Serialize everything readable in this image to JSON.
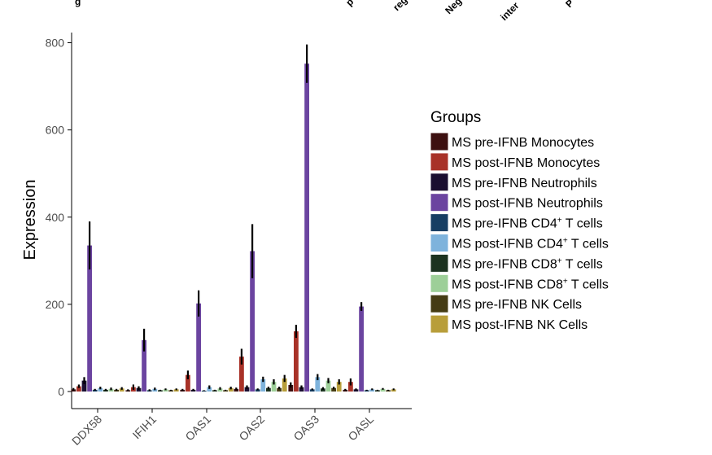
{
  "top_fragments": [
    "g",
    "p",
    "reg",
    "Neg",
    "inter",
    "P"
  ],
  "chart_data": {
    "type": "bar",
    "ylabel": "Expression",
    "ylim": [
      0,
      800
    ],
    "yticks": [
      0,
      200,
      400,
      600,
      800
    ],
    "categories": [
      "DDX58",
      "IFIH1",
      "OAS1",
      "OAS2",
      "OAS3",
      "OASL"
    ],
    "legend": {
      "title": "Groups",
      "position": "right"
    },
    "grid": false,
    "series": [
      {
        "name": "MS pre-IFNB Monocytes",
        "label_main": "MS pre-IFNB Monocytes",
        "label_sup": "",
        "label_tail": "",
        "color": "#3d1010",
        "values": [
          5,
          3,
          4,
          6,
          15,
          4
        ],
        "errors": [
          3,
          2,
          2,
          3,
          6,
          2
        ]
      },
      {
        "name": "MS post-IFNB Monocytes",
        "label_main": "MS post-IFNB Monocytes",
        "label_sup": "",
        "label_tail": "",
        "color": "#a83228",
        "values": [
          12,
          10,
          38,
          80,
          138,
          22
        ],
        "errors": [
          4,
          6,
          10,
          18,
          15,
          8
        ]
      },
      {
        "name": "MS pre-IFNB Neutrophils",
        "label_main": "MS pre-IFNB Neutrophils",
        "label_sup": "",
        "label_tail": "",
        "color": "#1a0e30",
        "values": [
          25,
          8,
          4,
          10,
          10,
          5
        ],
        "errors": [
          8,
          4,
          2,
          4,
          4,
          2
        ]
      },
      {
        "name": "MS post-IFNB Neutrophils",
        "label_main": "MS post-IFNB Neutrophils",
        "label_sup": "",
        "label_tail": "",
        "color": "#6b44a0",
        "values": [
          335,
          118,
          202,
          322,
          752,
          195
        ],
        "errors": [
          55,
          26,
          30,
          62,
          44,
          10
        ]
      },
      {
        "name": "MS pre-IFNB CD4+ T cells",
        "label_main": "MS pre-IFNB CD4",
        "label_sup": "+",
        "label_tail": " T cells",
        "color": "#173e63",
        "values": [
          4,
          3,
          2,
          5,
          5,
          3
        ],
        "errors": [
          2,
          2,
          1,
          2,
          2,
          1
        ]
      },
      {
        "name": "MS post-IFNB CD4+ T cells",
        "label_main": "MS post-IFNB CD4",
        "label_sup": "+",
        "label_tail": " T cells",
        "color": "#7eb3dc",
        "values": [
          8,
          6,
          10,
          28,
          33,
          5
        ],
        "errors": [
          3,
          3,
          4,
          6,
          7,
          2
        ]
      },
      {
        "name": "MS pre-IFNB CD8+ T cells",
        "label_main": "MS pre-IFNB CD8",
        "label_sup": "+",
        "label_tail": " T cells",
        "color": "#1c3320",
        "values": [
          4,
          3,
          3,
          8,
          7,
          3
        ],
        "errors": [
          2,
          1,
          1,
          3,
          3,
          1
        ]
      },
      {
        "name": "MS post-IFNB CD8+ T cells",
        "label_main": "MS post-IFNB CD8",
        "label_sup": "+",
        "label_tail": " T cells",
        "color": "#9dcf98",
        "values": [
          6,
          5,
          7,
          22,
          25,
          6
        ],
        "errors": [
          3,
          2,
          3,
          6,
          6,
          2
        ]
      },
      {
        "name": "MS pre-IFNB NK Cells",
        "label_main": "MS pre-IFNB NK Cells",
        "label_sup": "",
        "label_tail": "",
        "color": "#453c14",
        "values": [
          4,
          3,
          3,
          8,
          8,
          3
        ],
        "errors": [
          2,
          1,
          1,
          3,
          3,
          1
        ]
      },
      {
        "name": "MS post-IFNB NK Cells",
        "label_main": "MS post-IFNB NK Cells",
        "label_sup": "",
        "label_tail": "",
        "color": "#b89e3a",
        "values": [
          7,
          5,
          8,
          30,
          22,
          5
        ],
        "errors": [
          3,
          2,
          3,
          8,
          6,
          2
        ]
      }
    ]
  }
}
